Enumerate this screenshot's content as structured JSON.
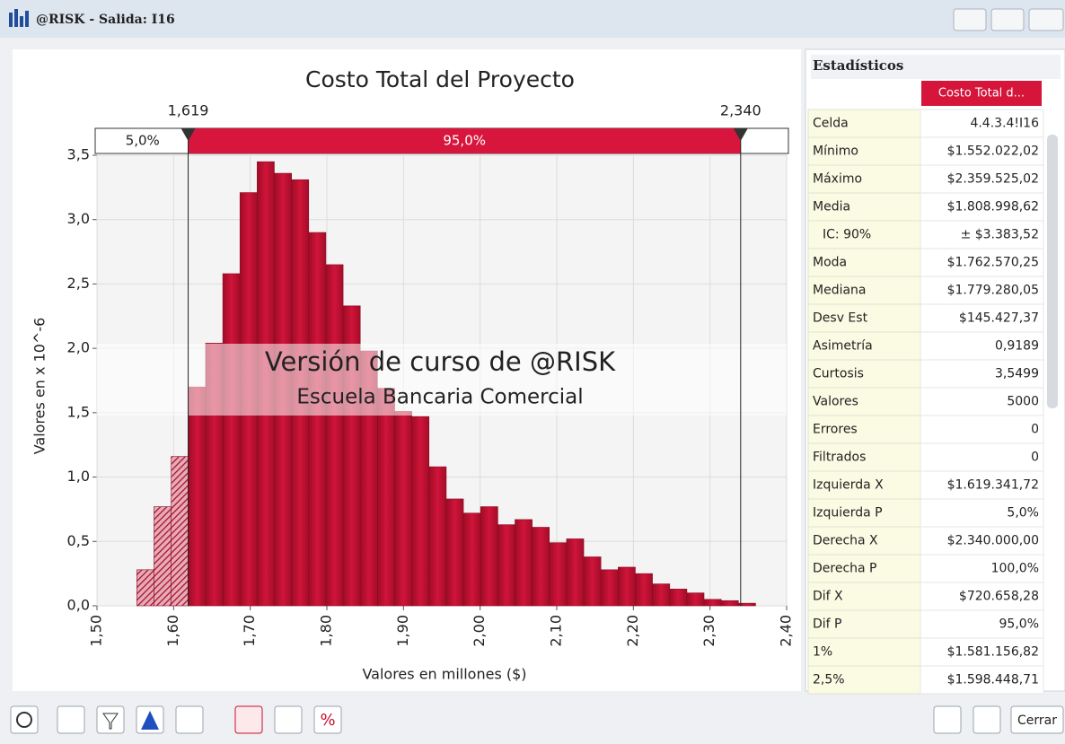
{
  "window": {
    "title": "@RISK - Salida: I16",
    "close_button": "Cerrar"
  },
  "chart_data": {
    "type": "histogram",
    "title": "Costo Total del Proyecto",
    "xlabel": "Valores en millones ($)",
    "ylabel": "Valores en x 10^-6",
    "color": "#c8102e",
    "bins": [
      1.552,
      1.5744,
      1.5969,
      1.6193,
      1.6417,
      1.6642,
      1.6866,
      1.709,
      1.7314,
      1.7539,
      1.7763,
      1.7987,
      1.8212,
      1.8436,
      1.866,
      1.8885,
      1.9109,
      1.9333,
      1.9558,
      1.9782,
      2.0006,
      2.0231,
      2.0455,
      2.0679,
      2.0903,
      2.1128,
      2.1352,
      2.1576,
      2.1801,
      2.2025,
      2.2249,
      2.2474,
      2.2698,
      2.2922,
      2.3147,
      2.3371,
      2.3595
    ],
    "values": [
      0.28,
      0.77,
      1.16,
      1.7,
      2.04,
      2.58,
      3.21,
      3.45,
      3.36,
      3.31,
      2.9,
      2.65,
      2.33,
      1.98,
      1.69,
      1.51,
      1.47,
      1.08,
      0.83,
      0.72,
      0.77,
      0.63,
      0.67,
      0.61,
      0.49,
      0.52,
      0.38,
      0.28,
      0.3,
      0.25,
      0.17,
      0.13,
      0.1,
      0.05,
      0.04,
      0.02
    ],
    "xlim": [
      1.5,
      2.4
    ],
    "xticks": [
      {
        "value": 1.5,
        "label": "1,50"
      },
      {
        "value": 1.6,
        "label": "1,60"
      },
      {
        "value": 1.7,
        "label": "1,70"
      },
      {
        "value": 1.8,
        "label": "1,80"
      },
      {
        "value": 1.9,
        "label": "1,90"
      },
      {
        "value": 2.0,
        "label": "2,00"
      },
      {
        "value": 2.1,
        "label": "2,10"
      },
      {
        "value": 2.2,
        "label": "2,20"
      },
      {
        "value": 2.3,
        "label": "2,30"
      },
      {
        "value": 2.4,
        "label": "2,40"
      }
    ],
    "ylim": [
      0,
      3.5
    ],
    "yticks": [
      {
        "value": 0,
        "label": "0,0"
      },
      {
        "value": 0.5,
        "label": "0,5"
      },
      {
        "value": 1.0,
        "label": "1,0"
      },
      {
        "value": 1.5,
        "label": "1,5"
      },
      {
        "value": 2.0,
        "label": "2,0"
      },
      {
        "value": 2.5,
        "label": "2,5"
      },
      {
        "value": 3.0,
        "label": "3,0"
      },
      {
        "value": 3.5,
        "label": "3,5"
      }
    ],
    "grid": true,
    "delimiters": {
      "left": {
        "value": 1.619,
        "label": "1,619"
      },
      "right": {
        "value": 2.34,
        "label": "2,340"
      },
      "left_pct": {
        "value": 5,
        "label": "5,0%"
      },
      "middle_pct": {
        "value": 95,
        "label": "95,0%"
      }
    },
    "annotations": [
      "Versión de curso de @RISK",
      "Escuela Bancaria Comercial"
    ]
  },
  "stats": {
    "header": "Estadísticos",
    "column": "Costo Total d...",
    "rows": [
      [
        "Celda",
        "4.4.3.4!I16"
      ],
      [
        "Mínimo",
        "$1.552.022,02"
      ],
      [
        "Máximo",
        "$2.359.525,02"
      ],
      [
        "Media",
        "$1.808.998,62"
      ],
      [
        "IC: 90%",
        "± $3.383,52"
      ],
      [
        "Moda",
        "$1.762.570,25"
      ],
      [
        "Mediana",
        "$1.779.280,05"
      ],
      [
        "Desv Est",
        "$145.427,37"
      ],
      [
        "Asimetría",
        "0,9189"
      ],
      [
        "Curtosis",
        "3,5499"
      ],
      [
        "Valores",
        "5000"
      ],
      [
        "Errores",
        "0"
      ],
      [
        "Filtrados",
        "0"
      ],
      [
        "Izquierda X",
        "$1.619.341,72"
      ],
      [
        "Izquierda P",
        "5,0%"
      ],
      [
        "Derecha X",
        "$2.340.000,00"
      ],
      [
        "Derecha P",
        "100,0%"
      ],
      [
        "Dif X",
        "$720.658,28"
      ],
      [
        "Dif P",
        "95,0%"
      ],
      [
        "1%",
        "$1.581.156,82"
      ],
      [
        "2,5%",
        "$1.598.448,71"
      ]
    ]
  }
}
